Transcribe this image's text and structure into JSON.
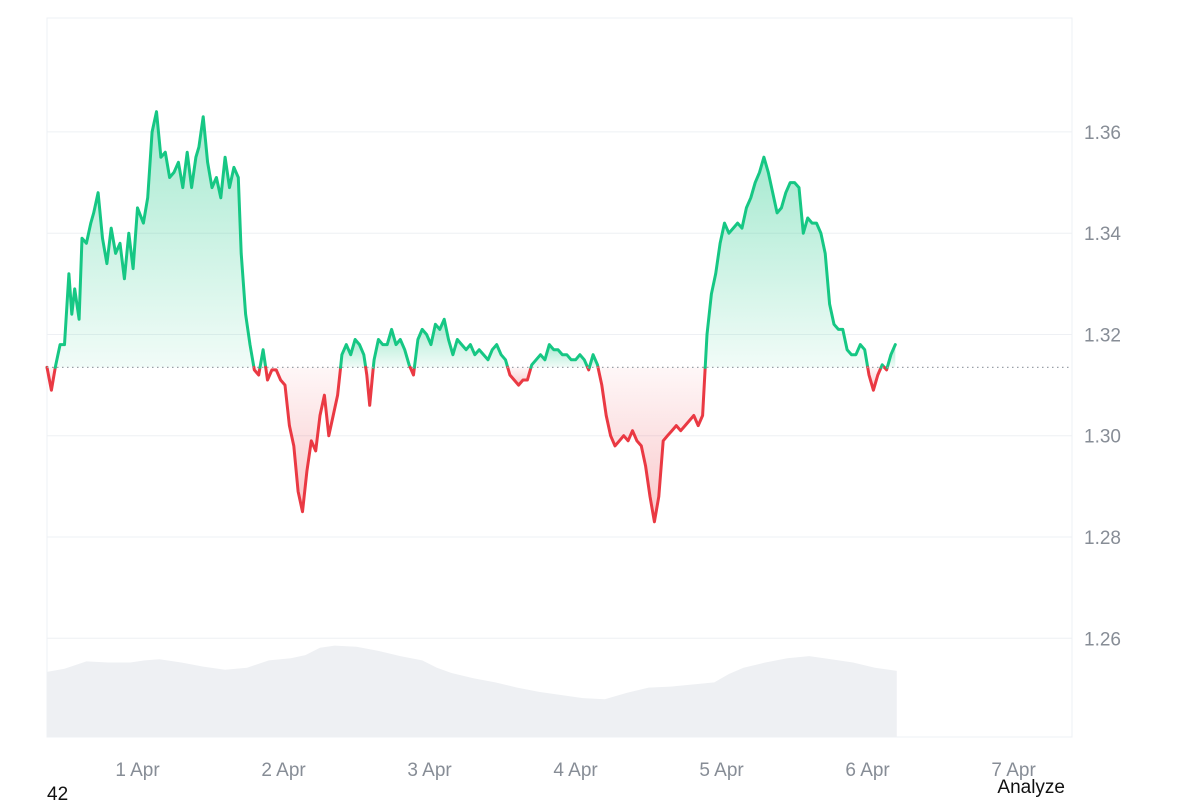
{
  "chart_data": {
    "type": "area",
    "baseline": 1.3135,
    "ylim": [
      1.2405,
      1.3825
    ],
    "yticks": [
      "1.36",
      "1.34",
      "1.32",
      "1.30",
      "1.28",
      "1.26"
    ],
    "xtick_labels": [
      "1 Apr",
      "2 Apr",
      "3 Apr",
      "4 Apr",
      "5 Apr",
      "6 Apr",
      "7 Apr"
    ],
    "xlim_days": [
      31.38,
      38.4
    ],
    "grid": true,
    "colors": {
      "up": "#16c784",
      "down": "#ea3943",
      "volume": "#eef0f3",
      "grid": "#eef0f4",
      "baseline_dots": "#9aa0a8"
    },
    "series": [
      {
        "values": [
          [
            31.38,
            1.3135
          ],
          [
            31.41,
            1.309
          ],
          [
            31.44,
            1.314
          ],
          [
            31.47,
            1.318
          ],
          [
            31.5,
            1.318
          ],
          [
            31.53,
            1.332
          ],
          [
            31.55,
            1.324
          ],
          [
            31.57,
            1.329
          ],
          [
            31.6,
            1.323
          ],
          [
            31.62,
            1.339
          ],
          [
            31.65,
            1.338
          ],
          [
            31.68,
            1.342
          ],
          [
            31.7,
            1.344
          ],
          [
            31.73,
            1.348
          ],
          [
            31.76,
            1.339
          ],
          [
            31.79,
            1.334
          ],
          [
            31.82,
            1.341
          ],
          [
            31.85,
            1.336
          ],
          [
            31.88,
            1.338
          ],
          [
            31.91,
            1.331
          ],
          [
            31.94,
            1.34
          ],
          [
            31.97,
            1.333
          ],
          [
            32.0,
            1.345
          ],
          [
            32.04,
            1.342
          ],
          [
            32.07,
            1.347
          ],
          [
            32.1,
            1.36
          ],
          [
            32.13,
            1.364
          ],
          [
            32.16,
            1.355
          ],
          [
            32.19,
            1.356
          ],
          [
            32.22,
            1.351
          ],
          [
            32.25,
            1.352
          ],
          [
            32.28,
            1.354
          ],
          [
            32.31,
            1.349
          ],
          [
            32.34,
            1.356
          ],
          [
            32.37,
            1.349
          ],
          [
            32.4,
            1.355
          ],
          [
            32.42,
            1.357
          ],
          [
            32.45,
            1.363
          ],
          [
            32.48,
            1.354
          ],
          [
            32.51,
            1.349
          ],
          [
            32.54,
            1.351
          ],
          [
            32.57,
            1.347
          ],
          [
            32.6,
            1.355
          ],
          [
            32.63,
            1.349
          ],
          [
            32.66,
            1.353
          ],
          [
            32.69,
            1.351
          ],
          [
            32.71,
            1.336
          ],
          [
            32.74,
            1.324
          ],
          [
            32.77,
            1.318
          ],
          [
            32.8,
            1.313
          ],
          [
            32.83,
            1.312
          ],
          [
            32.86,
            1.317
          ],
          [
            32.89,
            1.311
          ],
          [
            32.92,
            1.313
          ],
          [
            32.95,
            1.313
          ],
          [
            32.98,
            1.311
          ],
          [
            33.01,
            1.31
          ],
          [
            33.04,
            1.302
          ],
          [
            33.07,
            1.298
          ],
          [
            33.1,
            1.289
          ],
          [
            33.13,
            1.285
          ],
          [
            33.16,
            1.293
          ],
          [
            33.19,
            1.299
          ],
          [
            33.22,
            1.297
          ],
          [
            33.25,
            1.304
          ],
          [
            33.28,
            1.308
          ],
          [
            33.31,
            1.3
          ],
          [
            33.34,
            1.304
          ],
          [
            33.37,
            1.308
          ],
          [
            33.4,
            1.316
          ],
          [
            33.43,
            1.318
          ],
          [
            33.46,
            1.316
          ],
          [
            33.49,
            1.319
          ],
          [
            33.52,
            1.318
          ],
          [
            33.55,
            1.316
          ],
          [
            33.57,
            1.312
          ],
          [
            33.59,
            1.306
          ],
          [
            33.62,
            1.315
          ],
          [
            33.65,
            1.319
          ],
          [
            33.68,
            1.318
          ],
          [
            33.71,
            1.318
          ],
          [
            33.74,
            1.321
          ],
          [
            33.77,
            1.318
          ],
          [
            33.8,
            1.319
          ],
          [
            33.83,
            1.317
          ],
          [
            33.86,
            1.314
          ],
          [
            33.89,
            1.312
          ],
          [
            33.92,
            1.319
          ],
          [
            33.95,
            1.321
          ],
          [
            33.98,
            1.32
          ],
          [
            34.01,
            1.318
          ],
          [
            34.04,
            1.322
          ],
          [
            34.07,
            1.321
          ],
          [
            34.1,
            1.323
          ],
          [
            34.13,
            1.319
          ],
          [
            34.16,
            1.316
          ],
          [
            34.19,
            1.319
          ],
          [
            34.22,
            1.318
          ],
          [
            34.25,
            1.317
          ],
          [
            34.28,
            1.318
          ],
          [
            34.31,
            1.316
          ],
          [
            34.34,
            1.317
          ],
          [
            34.37,
            1.316
          ],
          [
            34.4,
            1.315
          ],
          [
            34.43,
            1.317
          ],
          [
            34.46,
            1.318
          ],
          [
            34.49,
            1.316
          ],
          [
            34.52,
            1.315
          ],
          [
            34.55,
            1.312
          ],
          [
            34.58,
            1.311
          ],
          [
            34.61,
            1.31
          ],
          [
            34.64,
            1.311
          ],
          [
            34.67,
            1.311
          ],
          [
            34.7,
            1.314
          ],
          [
            34.73,
            1.315
          ],
          [
            34.76,
            1.316
          ],
          [
            34.79,
            1.315
          ],
          [
            34.82,
            1.318
          ],
          [
            34.85,
            1.317
          ],
          [
            34.88,
            1.317
          ],
          [
            34.91,
            1.316
          ],
          [
            34.94,
            1.316
          ],
          [
            34.97,
            1.315
          ],
          [
            35.0,
            1.315
          ],
          [
            35.03,
            1.316
          ],
          [
            35.06,
            1.315
          ],
          [
            35.09,
            1.313
          ],
          [
            35.12,
            1.316
          ],
          [
            35.15,
            1.314
          ],
          [
            35.18,
            1.31
          ],
          [
            35.21,
            1.304
          ],
          [
            35.24,
            1.3
          ],
          [
            35.27,
            1.298
          ],
          [
            35.3,
            1.299
          ],
          [
            35.33,
            1.3
          ],
          [
            35.36,
            1.299
          ],
          [
            35.39,
            1.301
          ],
          [
            35.42,
            1.299
          ],
          [
            35.45,
            1.298
          ],
          [
            35.48,
            1.294
          ],
          [
            35.51,
            1.288
          ],
          [
            35.54,
            1.283
          ],
          [
            35.57,
            1.288
          ],
          [
            35.6,
            1.299
          ],
          [
            35.63,
            1.3
          ],
          [
            35.66,
            1.301
          ],
          [
            35.69,
            1.302
          ],
          [
            35.72,
            1.301
          ],
          [
            35.75,
            1.302
          ],
          [
            35.78,
            1.303
          ],
          [
            35.81,
            1.304
          ],
          [
            35.84,
            1.302
          ],
          [
            35.87,
            1.304
          ],
          [
            35.9,
            1.32
          ],
          [
            35.93,
            1.328
          ],
          [
            35.96,
            1.332
          ],
          [
            35.99,
            1.338
          ],
          [
            36.02,
            1.342
          ],
          [
            36.05,
            1.34
          ],
          [
            36.08,
            1.341
          ],
          [
            36.11,
            1.342
          ],
          [
            36.14,
            1.341
          ],
          [
            36.17,
            1.345
          ],
          [
            36.2,
            1.347
          ],
          [
            36.23,
            1.35
          ],
          [
            36.26,
            1.352
          ],
          [
            36.29,
            1.355
          ],
          [
            36.32,
            1.352
          ],
          [
            36.35,
            1.348
          ],
          [
            36.38,
            1.344
          ],
          [
            36.41,
            1.345
          ],
          [
            36.44,
            1.348
          ],
          [
            36.47,
            1.35
          ],
          [
            36.5,
            1.35
          ],
          [
            36.53,
            1.349
          ],
          [
            36.56,
            1.34
          ],
          [
            36.59,
            1.343
          ],
          [
            36.62,
            1.342
          ],
          [
            36.65,
            1.342
          ],
          [
            36.68,
            1.34
          ],
          [
            36.71,
            1.336
          ],
          [
            36.74,
            1.326
          ],
          [
            36.77,
            1.322
          ],
          [
            36.8,
            1.321
          ],
          [
            36.83,
            1.321
          ],
          [
            36.86,
            1.317
          ],
          [
            36.89,
            1.316
          ],
          [
            36.92,
            1.316
          ],
          [
            36.95,
            1.318
          ],
          [
            36.98,
            1.317
          ],
          [
            37.01,
            1.312
          ],
          [
            37.04,
            1.309
          ],
          [
            37.07,
            1.312
          ],
          [
            37.1,
            1.314
          ],
          [
            37.13,
            1.313
          ],
          [
            37.16,
            1.316
          ],
          [
            37.19,
            1.318
          ]
        ]
      }
    ],
    "volume": [
      [
        31.38,
        0.62
      ],
      [
        31.5,
        0.65
      ],
      [
        31.65,
        0.72
      ],
      [
        31.8,
        0.71
      ],
      [
        31.95,
        0.71
      ],
      [
        32.05,
        0.73
      ],
      [
        32.15,
        0.74
      ],
      [
        32.3,
        0.71
      ],
      [
        32.45,
        0.67
      ],
      [
        32.6,
        0.64
      ],
      [
        32.75,
        0.66
      ],
      [
        32.9,
        0.73
      ],
      [
        33.05,
        0.75
      ],
      [
        33.15,
        0.78
      ],
      [
        33.25,
        0.85
      ],
      [
        33.35,
        0.87
      ],
      [
        33.5,
        0.86
      ],
      [
        33.65,
        0.82
      ],
      [
        33.8,
        0.77
      ],
      [
        33.95,
        0.73
      ],
      [
        34.05,
        0.66
      ],
      [
        34.15,
        0.61
      ],
      [
        34.3,
        0.56
      ],
      [
        34.45,
        0.52
      ],
      [
        34.6,
        0.47
      ],
      [
        34.75,
        0.43
      ],
      [
        34.9,
        0.4
      ],
      [
        35.05,
        0.37
      ],
      [
        35.2,
        0.36
      ],
      [
        35.35,
        0.42
      ],
      [
        35.5,
        0.47
      ],
      [
        35.65,
        0.48
      ],
      [
        35.8,
        0.5
      ],
      [
        35.95,
        0.52
      ],
      [
        36.05,
        0.6
      ],
      [
        36.15,
        0.66
      ],
      [
        36.3,
        0.71
      ],
      [
        36.45,
        0.75
      ],
      [
        36.6,
        0.77
      ],
      [
        36.75,
        0.74
      ],
      [
        36.9,
        0.71
      ],
      [
        37.05,
        0.66
      ],
      [
        37.2,
        0.63
      ]
    ],
    "volume_max": 1.0
  },
  "footer": {
    "left_text": "42",
    "right_link": "Analyze"
  }
}
